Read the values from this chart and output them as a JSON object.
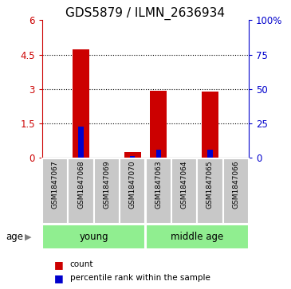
{
  "title": "GDS5879 / ILMN_2636934",
  "samples": [
    "GSM1847067",
    "GSM1847068",
    "GSM1847069",
    "GSM1847070",
    "GSM1847063",
    "GSM1847064",
    "GSM1847065",
    "GSM1847066"
  ],
  "red_values": [
    0.0,
    4.72,
    0.0,
    0.25,
    2.9,
    0.0,
    2.87,
    0.0
  ],
  "blue_values": [
    0.0,
    1.35,
    0.0,
    0.07,
    0.35,
    0.0,
    0.35,
    0.0
  ],
  "ylim_left": [
    0,
    6
  ],
  "ylim_right": [
    0,
    100
  ],
  "yticks_left": [
    0,
    1.5,
    3,
    4.5,
    6
  ],
  "yticks_right": [
    0,
    25,
    50,
    75,
    100
  ],
  "ytick_labels_left": [
    "0",
    "1.5",
    "3",
    "4.5",
    "6"
  ],
  "ytick_labels_right": [
    "0",
    "25",
    "50",
    "75",
    "100%"
  ],
  "groups": [
    {
      "label": "young",
      "span": [
        0,
        3
      ],
      "color": "#90EE90"
    },
    {
      "label": "middle age",
      "span": [
        4,
        7
      ],
      "color": "#90EE90"
    }
  ],
  "age_label": "age",
  "bar_width": 0.65,
  "red_color": "#CC0000",
  "blue_color": "#0000CC",
  "bg_color": "#ffffff",
  "sample_box_color": "#C8C8C8",
  "title_fontsize": 11,
  "legend_items": [
    "count",
    "percentile rank within the sample"
  ],
  "grid_yticks": [
    1.5,
    3.0,
    4.5
  ]
}
